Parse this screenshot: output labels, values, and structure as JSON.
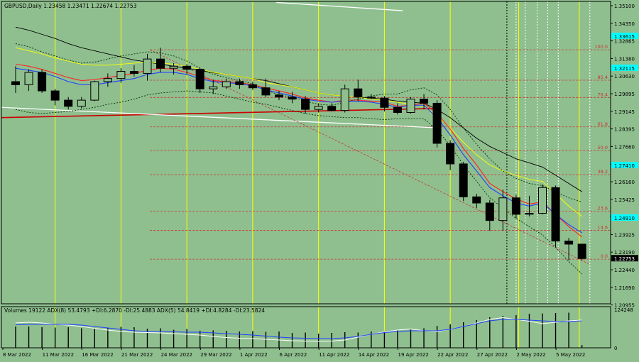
{
  "header": {
    "symbol_line": "GBPUSD,Daily  1.23458 1.23471 1.22674 1.22753",
    "indicator_line": "Volumes 19122  ADX(8) 53.4793 +DI:6.2870 -DI:25.4883  ADX(5) 54.8419 +DI:4.8284 -DI:23.5824"
  },
  "colors": {
    "background": "#8fbf8f",
    "grid_vertical": "#ffff00",
    "fib": "#cc3333",
    "trend_red": "#cc0000",
    "trend_white": "#ffffff",
    "ma_black": "#000000",
    "ma_yellow": "#ffff00",
    "ma_red": "#ff2222",
    "ma_blue": "#2040ff",
    "price_tag_bg": "#00ffff"
  },
  "chart_data": {
    "type": "candlestick",
    "x_axis_labels": [
      "8 Mar 2022",
      "11 Mar 2022",
      "16 Mar 2022",
      "21 Mar 2022",
      "24 Mar 2022",
      "29 Mar 2022",
      "1 Apr 2022",
      "6 Apr 2022",
      "11 Apr 2022",
      "14 Apr 2022",
      "19 Apr 2022",
      "22 Apr 2022",
      "27 Apr 2022",
      "2 May 2022",
      "5 May 2022"
    ],
    "y_axis_labels": [
      "1.35100",
      "1.34350",
      "1.32865",
      "1.31380",
      "1.30630",
      "1.29895",
      "1.29145",
      "1.28395",
      "1.27660",
      "1.26910",
      "1.26160",
      "1.25425",
      "1.24675",
      "1.23925",
      "1.23190",
      "1.22440",
      "1.21690",
      "1.20955"
    ],
    "highlighted_prices": [
      "1.33615",
      "1.32115",
      "1.27410",
      "1.24910",
      "1.22753"
    ],
    "ylim": [
      1.2055,
      1.3525
    ],
    "fib_levels": [
      {
        "label": "100.0",
        "price": 1.329
      },
      {
        "label": "85.4",
        "price": 1.3142
      },
      {
        "label": "76.4",
        "price": 1.3058
      },
      {
        "label": "61.8",
        "price": 1.2915
      },
      {
        "label": "50.0",
        "price": 1.28
      },
      {
        "label": "38.2",
        "price": 1.2683
      },
      {
        "label": "23.6",
        "price": 1.2505
      },
      {
        "label": "14.6",
        "price": 1.2412
      },
      {
        "label": "0.0",
        "price": 1.2272
      }
    ],
    "candles": [
      {
        "o": 1.3135,
        "h": 1.321,
        "l": 1.308,
        "c": 1.312
      },
      {
        "o": 1.312,
        "h": 1.3195,
        "l": 1.309,
        "c": 1.318
      },
      {
        "o": 1.318,
        "h": 1.3195,
        "l": 1.308,
        "c": 1.309
      },
      {
        "o": 1.309,
        "h": 1.31,
        "l": 1.302,
        "c": 1.3045
      },
      {
        "o": 1.3045,
        "h": 1.306,
        "l": 1.3,
        "c": 1.3015
      },
      {
        "o": 1.3015,
        "h": 1.306,
        "l": 1.3005,
        "c": 1.3045
      },
      {
        "o": 1.3045,
        "h": 1.314,
        "l": 1.304,
        "c": 1.3135
      },
      {
        "o": 1.3135,
        "h": 1.3175,
        "l": 1.311,
        "c": 1.315
      },
      {
        "o": 1.315,
        "h": 1.32,
        "l": 1.313,
        "c": 1.3185
      },
      {
        "o": 1.3185,
        "h": 1.3215,
        "l": 1.316,
        "c": 1.3175
      },
      {
        "o": 1.3175,
        "h": 1.327,
        "l": 1.314,
        "c": 1.3245
      },
      {
        "o": 1.3245,
        "h": 1.33,
        "l": 1.318,
        "c": 1.32
      },
      {
        "o": 1.32,
        "h": 1.3225,
        "l": 1.317,
        "c": 1.321
      },
      {
        "o": 1.321,
        "h": 1.322,
        "l": 1.317,
        "c": 1.3195
      },
      {
        "o": 1.3195,
        "h": 1.32,
        "l": 1.308,
        "c": 1.31
      },
      {
        "o": 1.31,
        "h": 1.3145,
        "l": 1.3075,
        "c": 1.311
      },
      {
        "o": 1.311,
        "h": 1.315,
        "l": 1.31,
        "c": 1.3135
      },
      {
        "o": 1.3135,
        "h": 1.315,
        "l": 1.31,
        "c": 1.312
      },
      {
        "o": 1.312,
        "h": 1.3135,
        "l": 1.3095,
        "c": 1.3105
      },
      {
        "o": 1.3105,
        "h": 1.315,
        "l": 1.306,
        "c": 1.307
      },
      {
        "o": 1.307,
        "h": 1.309,
        "l": 1.3045,
        "c": 1.306
      },
      {
        "o": 1.306,
        "h": 1.3085,
        "l": 1.303,
        "c": 1.305
      },
      {
        "o": 1.305,
        "h": 1.3065,
        "l": 1.298,
        "c": 1.3
      },
      {
        "o": 1.3,
        "h": 1.303,
        "l": 1.2985,
        "c": 1.3015
      },
      {
        "o": 1.3015,
        "h": 1.303,
        "l": 1.299,
        "c": 1.2995
      },
      {
        "o": 1.2995,
        "h": 1.312,
        "l": 1.2985,
        "c": 1.31
      },
      {
        "o": 1.31,
        "h": 1.3145,
        "l": 1.304,
        "c": 1.306
      },
      {
        "o": 1.306,
        "h": 1.3075,
        "l": 1.305,
        "c": 1.3055
      },
      {
        "o": 1.3055,
        "h": 1.3065,
        "l": 1.299,
        "c": 1.301
      },
      {
        "o": 1.301,
        "h": 1.303,
        "l": 1.2975,
        "c": 1.2985
      },
      {
        "o": 1.2985,
        "h": 1.306,
        "l": 1.298,
        "c": 1.305
      },
      {
        "o": 1.305,
        "h": 1.3075,
        "l": 1.3,
        "c": 1.303
      },
      {
        "o": 1.303,
        "h": 1.3045,
        "l": 1.2815,
        "c": 1.2835
      },
      {
        "o": 1.2835,
        "h": 1.285,
        "l": 1.2705,
        "c": 1.2735
      },
      {
        "o": 1.2735,
        "h": 1.2745,
        "l": 1.2555,
        "c": 1.2575
      },
      {
        "o": 1.2575,
        "h": 1.259,
        "l": 1.252,
        "c": 1.2545
      },
      {
        "o": 1.2545,
        "h": 1.256,
        "l": 1.241,
        "c": 1.246
      },
      {
        "o": 1.246,
        "h": 1.261,
        "l": 1.241,
        "c": 1.257
      },
      {
        "o": 1.257,
        "h": 1.2585,
        "l": 1.247,
        "c": 1.249
      },
      {
        "o": 1.249,
        "h": 1.258,
        "l": 1.248,
        "c": 1.2495
      },
      {
        "o": 1.2495,
        "h": 1.2635,
        "l": 1.249,
        "c": 1.262
      },
      {
        "o": 1.262,
        "h": 1.263,
        "l": 1.233,
        "c": 1.236
      },
      {
        "o": 1.236,
        "h": 1.2375,
        "l": 1.2265,
        "c": 1.2345
      },
      {
        "o": 1.2345,
        "h": 1.2347,
        "l": 1.2267,
        "c": 1.2275
      }
    ],
    "series": [
      {
        "values": [
          1.34,
          1.3385,
          1.3365,
          1.3345,
          1.332,
          1.33,
          1.3285,
          1.327,
          1.3255,
          1.324,
          1.323,
          1.322,
          1.321,
          1.32,
          1.319,
          1.3178,
          1.317,
          1.316,
          1.315,
          1.314,
          1.3125,
          1.311,
          1.3095,
          1.308,
          1.307,
          1.3065,
          1.306,
          1.3055,
          1.305,
          1.304,
          1.3035,
          1.303,
          1.3,
          1.296,
          1.291,
          1.286,
          1.282,
          1.279,
          1.276,
          1.274,
          1.272,
          1.268,
          1.264,
          1.26
        ]
      },
      {
        "values": [
          1.33,
          1.3285,
          1.327,
          1.325,
          1.3235,
          1.322,
          1.3215,
          1.3215,
          1.322,
          1.3225,
          1.323,
          1.3225,
          1.322,
          1.321,
          1.3195,
          1.318,
          1.317,
          1.316,
          1.315,
          1.313,
          1.312,
          1.311,
          1.3095,
          1.308,
          1.307,
          1.3065,
          1.306,
          1.305,
          1.3045,
          1.3035,
          1.3025,
          1.3015,
          1.297,
          1.291,
          1.284,
          1.278,
          1.273,
          1.27,
          1.268,
          1.266,
          1.265,
          1.259,
          1.253,
          1.248
        ]
      },
      {
        "values": [
          1.322,
          1.321,
          1.3195,
          1.3175,
          1.3155,
          1.314,
          1.3145,
          1.3155,
          1.3165,
          1.3175,
          1.319,
          1.32,
          1.3195,
          1.318,
          1.316,
          1.314,
          1.3135,
          1.313,
          1.312,
          1.3105,
          1.309,
          1.3075,
          1.3055,
          1.3045,
          1.3035,
          1.3045,
          1.3045,
          1.304,
          1.3035,
          1.3015,
          1.302,
          1.303,
          1.298,
          1.2905,
          1.281,
          1.273,
          1.264,
          1.26,
          1.2565,
          1.254,
          1.255,
          1.249,
          1.243,
          1.238
        ]
      },
      {
        "values": [
          1.32,
          1.319,
          1.318,
          1.316,
          1.3135,
          1.312,
          1.312,
          1.313,
          1.314,
          1.315,
          1.317,
          1.318,
          1.318,
          1.317,
          1.315,
          1.3135,
          1.313,
          1.3125,
          1.3115,
          1.3095,
          1.308,
          1.3065,
          1.305,
          1.304,
          1.3035,
          1.304,
          1.304,
          1.3035,
          1.3025,
          1.301,
          1.302,
          1.302,
          1.296,
          1.2875,
          1.278,
          1.27,
          1.262,
          1.258,
          1.2545,
          1.253,
          1.2545,
          1.249,
          1.244,
          1.24
        ]
      },
      {
        "values": [
          1.332,
          1.3305,
          1.328,
          1.326,
          1.324,
          1.3225,
          1.323,
          1.3245,
          1.326,
          1.327,
          1.328,
          1.3275,
          1.326,
          1.3235,
          1.32,
          1.317,
          1.3155,
          1.314,
          1.3125,
          1.3095,
          1.307,
          1.306,
          1.304,
          1.3025,
          1.302,
          1.3035,
          1.305,
          1.3065,
          1.3075,
          1.3075,
          1.3095,
          1.3105,
          1.307,
          1.3,
          1.291,
          1.283,
          1.276,
          1.27,
          1.2665,
          1.264,
          1.263,
          1.26,
          1.257,
          1.255
        ]
      },
      {
        "values": [
          1.3,
          1.2985,
          1.298,
          1.2985,
          1.299,
          1.3,
          1.301,
          1.3025,
          1.3035,
          1.305,
          1.307,
          1.308,
          1.3085,
          1.309,
          1.3085,
          1.308,
          1.3065,
          1.305,
          1.3035,
          1.3025,
          1.301,
          1.2995,
          1.298,
          1.297,
          1.2965,
          1.296,
          1.296,
          1.2955,
          1.295,
          1.2955,
          1.2955,
          1.2955,
          1.29,
          1.2825,
          1.273,
          1.265,
          1.257,
          1.252,
          1.247,
          1.243,
          1.239,
          1.233,
          1.226,
          1.22
        ]
      }
    ],
    "volumes": [
      0.6,
      0.6,
      0.58,
      0.57,
      0.58,
      0.55,
      0.56,
      0.57,
      0.59,
      0.58,
      0.54,
      0.55,
      0.51,
      0.53,
      0.48,
      0.49,
      0.48,
      0.46,
      0.47,
      0.45,
      0.46,
      0.42,
      0.43,
      0.4,
      0.42,
      0.44,
      0.43,
      0.46,
      0.47,
      0.5,
      0.53,
      0.55,
      0.62,
      0.66,
      0.72,
      0.78,
      0.86,
      0.9,
      0.92,
      0.96,
      0.97,
      0.98,
      0.99,
      0.08
    ],
    "adx_lines": [
      {
        "values": [
          0.7,
          0.72,
          0.7,
          0.66,
          0.64,
          0.6,
          0.55,
          0.5,
          0.46,
          0.44,
          0.43,
          0.42,
          0.4,
          0.38,
          0.36,
          0.32,
          0.29,
          0.27,
          0.26,
          0.24,
          0.22,
          0.2,
          0.19,
          0.18,
          0.19,
          0.22,
          0.3,
          0.38,
          0.45,
          0.5,
          0.53,
          0.48,
          0.46,
          0.52,
          0.6,
          0.7,
          0.8,
          0.85,
          0.8,
          0.75,
          0.68,
          0.72,
          0.76,
          0.78
        ]
      },
      {
        "values": [
          0.65,
          0.66,
          0.66,
          0.66,
          0.66,
          0.64,
          0.6,
          0.56,
          0.52,
          0.48,
          0.46,
          0.46,
          0.45,
          0.44,
          0.44,
          0.42,
          0.4,
          0.38,
          0.36,
          0.33,
          0.3,
          0.28,
          0.27,
          0.26,
          0.26,
          0.28,
          0.32,
          0.38,
          0.43,
          0.46,
          0.48,
          0.48,
          0.48,
          0.52,
          0.6,
          0.68,
          0.76,
          0.8,
          0.8,
          0.78,
          0.76,
          0.74,
          0.74,
          0.76
        ]
      }
    ]
  }
}
